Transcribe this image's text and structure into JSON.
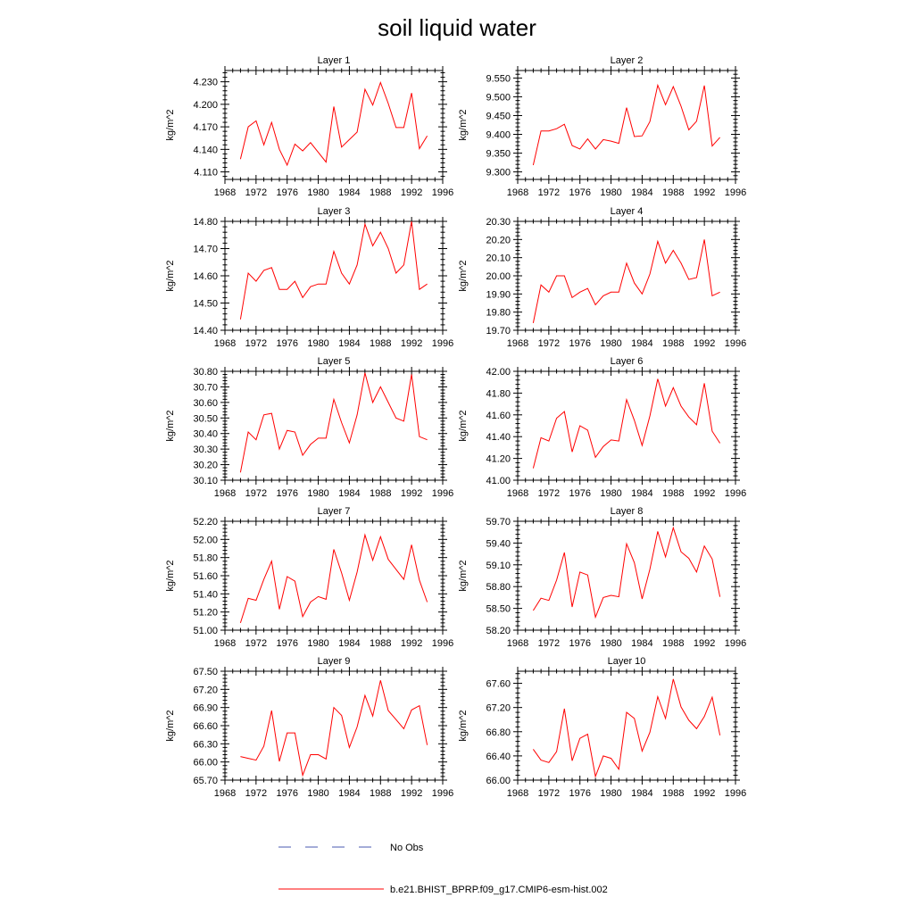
{
  "title": "soil liquid water",
  "legend": {
    "no_obs_label": "No Obs",
    "no_obs_color": "#4a5ab0",
    "model_label": "b.e21.BHIST_BPRP.f09_g17.CMIP6-esm-hist.002",
    "model_color": "#ff0000"
  },
  "chart_data": [
    {
      "type": "line",
      "title": "Layer 1",
      "xlabel": "",
      "ylabel": "kg/m^2",
      "xlim": [
        1968,
        1996
      ],
      "ylim": [
        4.1,
        4.245
      ],
      "xticks": [
        1968,
        1972,
        1976,
        1980,
        1984,
        1988,
        1992,
        1996
      ],
      "yticks": [
        4.11,
        4.14,
        4.17,
        4.2,
        4.23
      ],
      "ytick_labels": [
        "4.110",
        "4.140",
        "4.170",
        "4.200",
        "4.230"
      ],
      "x": [
        1970,
        1971,
        1972,
        1973,
        1974,
        1975,
        1976,
        1977,
        1978,
        1979,
        1980,
        1981,
        1982,
        1983,
        1984,
        1985,
        1986,
        1987,
        1988,
        1989,
        1990,
        1991,
        1992,
        1993,
        1994
      ],
      "values": [
        4.127,
        4.17,
        4.178,
        4.146,
        4.176,
        4.14,
        4.119,
        4.147,
        4.138,
        4.149,
        4.136,
        4.123,
        4.197,
        4.143,
        4.153,
        4.163,
        4.22,
        4.199,
        4.229,
        4.201,
        4.169,
        4.169,
        4.215,
        4.141,
        4.158
      ]
    },
    {
      "type": "line",
      "title": "Layer 2",
      "xlabel": "",
      "ylabel": "kg/m^2",
      "xlim": [
        1968,
        1996
      ],
      "ylim": [
        9.28,
        9.57
      ],
      "xticks": [
        1968,
        1972,
        1976,
        1980,
        1984,
        1988,
        1992,
        1996
      ],
      "yticks": [
        9.3,
        9.35,
        9.4,
        9.45,
        9.5,
        9.55
      ],
      "ytick_labels": [
        "9.300",
        "9.350",
        "9.400",
        "9.450",
        "9.500",
        "9.550"
      ],
      "x": [
        1970,
        1971,
        1972,
        1973,
        1974,
        1975,
        1976,
        1977,
        1978,
        1979,
        1980,
        1981,
        1982,
        1983,
        1984,
        1985,
        1986,
        1987,
        1988,
        1989,
        1990,
        1991,
        1992,
        1993,
        1994
      ],
      "values": [
        9.318,
        9.409,
        9.409,
        9.415,
        9.427,
        9.37,
        9.361,
        9.388,
        9.361,
        9.386,
        9.382,
        9.376,
        9.471,
        9.394,
        9.396,
        9.434,
        9.531,
        9.479,
        9.527,
        9.475,
        9.412,
        9.435,
        9.53,
        9.369,
        9.392
      ]
    },
    {
      "type": "line",
      "title": "Layer 3",
      "xlabel": "",
      "ylabel": "kg/m^2",
      "xlim": [
        1968,
        1996
      ],
      "ylim": [
        14.4,
        14.8
      ],
      "xticks": [
        1968,
        1972,
        1976,
        1980,
        1984,
        1988,
        1992,
        1996
      ],
      "yticks": [
        14.4,
        14.5,
        14.6,
        14.7,
        14.8
      ],
      "ytick_labels": [
        "14.40",
        "14.50",
        "14.60",
        "14.70",
        "14.80"
      ],
      "x": [
        1970,
        1971,
        1972,
        1973,
        1974,
        1975,
        1976,
        1977,
        1978,
        1979,
        1980,
        1981,
        1982,
        1983,
        1984,
        1985,
        1986,
        1987,
        1988,
        1989,
        1990,
        1991,
        1992,
        1993,
        1994
      ],
      "values": [
        14.44,
        14.61,
        14.58,
        14.62,
        14.63,
        14.55,
        14.55,
        14.58,
        14.52,
        14.56,
        14.57,
        14.57,
        14.69,
        14.61,
        14.57,
        14.64,
        14.79,
        14.71,
        14.76,
        14.7,
        14.61,
        14.64,
        14.8,
        14.55,
        14.57
      ]
    },
    {
      "type": "line",
      "title": "Layer 4",
      "xlabel": "",
      "ylabel": "kg/m^2",
      "xlim": [
        1968,
        1996
      ],
      "ylim": [
        19.7,
        20.3
      ],
      "xticks": [
        1968,
        1972,
        1976,
        1980,
        1984,
        1988,
        1992,
        1996
      ],
      "yticks": [
        19.7,
        19.8,
        19.9,
        20.0,
        20.1,
        20.2,
        20.3
      ],
      "ytick_labels": [
        "19.70",
        "19.80",
        "19.90",
        "20.00",
        "20.10",
        "20.20",
        "20.30"
      ],
      "x": [
        1970,
        1971,
        1972,
        1973,
        1974,
        1975,
        1976,
        1977,
        1978,
        1979,
        1980,
        1981,
        1982,
        1983,
        1984,
        1985,
        1986,
        1987,
        1988,
        1989,
        1990,
        1991,
        1992,
        1993,
        1994
      ],
      "values": [
        19.74,
        19.95,
        19.91,
        20.0,
        20.0,
        19.88,
        19.91,
        19.93,
        19.84,
        19.89,
        19.91,
        19.91,
        20.07,
        19.96,
        19.9,
        20.01,
        20.19,
        20.07,
        20.14,
        20.07,
        19.98,
        19.99,
        20.2,
        19.89,
        19.91
      ]
    },
    {
      "type": "line",
      "title": "Layer 5",
      "xlabel": "",
      "ylabel": "kg/m^2",
      "xlim": [
        1968,
        1996
      ],
      "ylim": [
        30.1,
        30.8
      ],
      "xticks": [
        1968,
        1972,
        1976,
        1980,
        1984,
        1988,
        1992,
        1996
      ],
      "yticks": [
        30.1,
        30.2,
        30.3,
        30.4,
        30.5,
        30.6,
        30.7,
        30.8
      ],
      "ytick_labels": [
        "30.10",
        "30.20",
        "30.30",
        "30.40",
        "30.50",
        "30.60",
        "30.70",
        "30.80"
      ],
      "x": [
        1970,
        1971,
        1972,
        1973,
        1974,
        1975,
        1976,
        1977,
        1978,
        1979,
        1980,
        1981,
        1982,
        1983,
        1984,
        1985,
        1986,
        1987,
        1988,
        1989,
        1990,
        1991,
        1992,
        1993,
        1994
      ],
      "values": [
        30.15,
        30.41,
        30.36,
        30.52,
        30.53,
        30.3,
        30.42,
        30.41,
        30.26,
        30.33,
        30.37,
        30.37,
        30.62,
        30.47,
        30.34,
        30.52,
        30.79,
        30.6,
        30.7,
        30.6,
        30.5,
        30.48,
        30.78,
        30.38,
        30.36
      ]
    },
    {
      "type": "line",
      "title": "Layer 6",
      "xlabel": "",
      "ylabel": "kg/m^2",
      "xlim": [
        1968,
        1996
      ],
      "ylim": [
        41.0,
        42.0
      ],
      "xticks": [
        1968,
        1972,
        1976,
        1980,
        1984,
        1988,
        1992,
        1996
      ],
      "yticks": [
        41.0,
        41.2,
        41.4,
        41.6,
        41.8,
        42.0
      ],
      "ytick_labels": [
        "41.00",
        "41.20",
        "41.40",
        "41.60",
        "41.80",
        "42.00"
      ],
      "x": [
        1970,
        1971,
        1972,
        1973,
        1974,
        1975,
        1976,
        1977,
        1978,
        1979,
        1980,
        1981,
        1982,
        1983,
        1984,
        1985,
        1986,
        1987,
        1988,
        1989,
        1990,
        1991,
        1992,
        1993,
        1994
      ],
      "values": [
        41.11,
        41.39,
        41.36,
        41.57,
        41.63,
        41.26,
        41.5,
        41.46,
        41.21,
        41.31,
        41.37,
        41.36,
        41.74,
        41.55,
        41.32,
        41.59,
        41.93,
        41.68,
        41.85,
        41.68,
        41.58,
        41.51,
        41.89,
        41.45,
        41.34
      ]
    },
    {
      "type": "line",
      "title": "Layer 7",
      "xlabel": "",
      "ylabel": "kg/m^2",
      "xlim": [
        1968,
        1996
      ],
      "ylim": [
        51.0,
        52.2
      ],
      "xticks": [
        1968,
        1972,
        1976,
        1980,
        1984,
        1988,
        1992,
        1996
      ],
      "yticks": [
        51.0,
        51.2,
        51.4,
        51.6,
        51.8,
        52.0,
        52.2
      ],
      "ytick_labels": [
        "51.00",
        "51.20",
        "51.40",
        "51.60",
        "51.80",
        "52.00",
        "52.20"
      ],
      "x": [
        1970,
        1971,
        1972,
        1973,
        1974,
        1975,
        1976,
        1977,
        1978,
        1979,
        1980,
        1981,
        1982,
        1983,
        1984,
        1985,
        1986,
        1987,
        1988,
        1989,
        1990,
        1991,
        1992,
        1993,
        1994
      ],
      "values": [
        51.08,
        51.35,
        51.33,
        51.56,
        51.76,
        51.23,
        51.59,
        51.54,
        51.15,
        51.31,
        51.37,
        51.34,
        51.89,
        51.63,
        51.33,
        51.64,
        52.05,
        51.77,
        52.03,
        51.78,
        51.67,
        51.56,
        51.94,
        51.55,
        51.31
      ]
    },
    {
      "type": "line",
      "title": "Layer 8",
      "xlabel": "",
      "ylabel": "kg/m^2",
      "xlim": [
        1968,
        1996
      ],
      "ylim": [
        58.2,
        59.7
      ],
      "xticks": [
        1968,
        1972,
        1976,
        1980,
        1984,
        1988,
        1992,
        1996
      ],
      "yticks": [
        58.2,
        58.5,
        58.8,
        59.1,
        59.4,
        59.7
      ],
      "ytick_labels": [
        "58.20",
        "58.50",
        "58.80",
        "59.10",
        "59.40",
        "59.70"
      ],
      "x": [
        1970,
        1971,
        1972,
        1973,
        1974,
        1975,
        1976,
        1977,
        1978,
        1979,
        1980,
        1981,
        1982,
        1983,
        1984,
        1985,
        1986,
        1987,
        1988,
        1989,
        1990,
        1991,
        1992,
        1993,
        1994
      ],
      "values": [
        58.47,
        58.64,
        58.61,
        58.89,
        59.27,
        58.52,
        59.0,
        58.96,
        58.38,
        58.65,
        58.68,
        58.66,
        59.39,
        59.13,
        58.63,
        59.04,
        59.56,
        59.21,
        59.61,
        59.28,
        59.19,
        59.0,
        59.36,
        59.18,
        58.66
      ]
    },
    {
      "type": "line",
      "title": "Layer 9",
      "xlabel": "",
      "ylabel": "kg/m^2",
      "xlim": [
        1968,
        1996
      ],
      "ylim": [
        65.7,
        67.5
      ],
      "xticks": [
        1968,
        1972,
        1976,
        1980,
        1984,
        1988,
        1992,
        1996
      ],
      "yticks": [
        65.7,
        66.0,
        66.3,
        66.6,
        66.9,
        67.2,
        67.5
      ],
      "ytick_labels": [
        "65.70",
        "66.00",
        "66.30",
        "66.60",
        "66.90",
        "67.20",
        "67.50"
      ],
      "x": [
        1970,
        1971,
        1972,
        1973,
        1974,
        1975,
        1976,
        1977,
        1978,
        1979,
        1980,
        1981,
        1982,
        1983,
        1984,
        1985,
        1986,
        1987,
        1988,
        1989,
        1990,
        1991,
        1992,
        1993,
        1994
      ],
      "values": [
        66.09,
        66.06,
        66.03,
        66.26,
        66.85,
        66.01,
        66.48,
        66.48,
        65.78,
        66.12,
        66.12,
        66.05,
        66.9,
        66.77,
        66.24,
        66.58,
        67.1,
        66.76,
        67.35,
        66.85,
        66.7,
        66.55,
        66.86,
        66.93,
        66.28
      ]
    },
    {
      "type": "line",
      "title": "Layer 10",
      "xlabel": "",
      "ylabel": "kg/m^2",
      "xlim": [
        1968,
        1996
      ],
      "ylim": [
        66.0,
        67.8
      ],
      "xticks": [
        1968,
        1972,
        1976,
        1980,
        1984,
        1988,
        1992,
        1996
      ],
      "yticks": [
        66.0,
        66.4,
        66.8,
        67.2,
        67.6
      ],
      "ytick_labels": [
        "66.00",
        "66.40",
        "66.80",
        "67.20",
        "67.60"
      ],
      "x": [
        1970,
        1971,
        1972,
        1973,
        1974,
        1975,
        1976,
        1977,
        1978,
        1979,
        1980,
        1981,
        1982,
        1983,
        1984,
        1985,
        1986,
        1987,
        1988,
        1989,
        1990,
        1991,
        1992,
        1993,
        1994
      ],
      "values": [
        66.51,
        66.33,
        66.29,
        66.47,
        67.18,
        66.32,
        66.69,
        66.76,
        66.06,
        66.4,
        66.36,
        66.18,
        67.12,
        67.02,
        66.48,
        66.79,
        67.38,
        67.02,
        67.67,
        67.21,
        66.99,
        66.85,
        67.05,
        67.37,
        66.74
      ]
    }
  ]
}
